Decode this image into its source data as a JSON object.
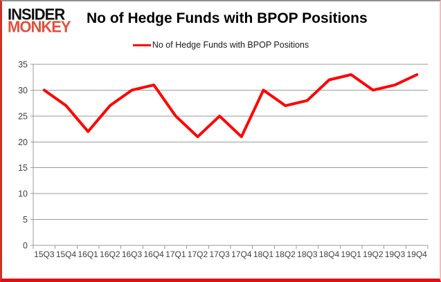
{
  "logo": {
    "line1": "INSIDER",
    "line2": "MONKEY"
  },
  "header": {
    "title": "No of Hedge Funds with BPOP Positions"
  },
  "legend": {
    "label": "No of Hedge Funds with BPOP Positions"
  },
  "colors": {
    "line": "#ff0000",
    "grid": "#9a9a9a",
    "axis_text": "#3f3f3f",
    "logo_accent": "#e2503a"
  },
  "chart_data": {
    "type": "line",
    "title": "No of Hedge Funds with BPOP Positions",
    "xlabel": "",
    "ylabel": "",
    "categories": [
      "15Q3",
      "15Q4",
      "16Q1",
      "16Q2",
      "16Q3",
      "16Q4",
      "17Q1",
      "17Q2",
      "17Q3",
      "17Q4",
      "18Q1",
      "18Q2",
      "18Q3",
      "18Q4",
      "19Q1",
      "19Q2",
      "19Q3",
      "19Q4"
    ],
    "series": [
      {
        "name": "No of Hedge Funds with BPOP Positions",
        "color": "#ff0000",
        "values": [
          30,
          27,
          22,
          27,
          30,
          31,
          25,
          21,
          25,
          21,
          30,
          27,
          28,
          32,
          33,
          30,
          31,
          33
        ]
      }
    ],
    "ylim": [
      0,
      35
    ],
    "yticks": [
      0,
      5,
      10,
      15,
      20,
      25,
      30,
      35
    ],
    "grid": true,
    "legend_position": "top"
  }
}
